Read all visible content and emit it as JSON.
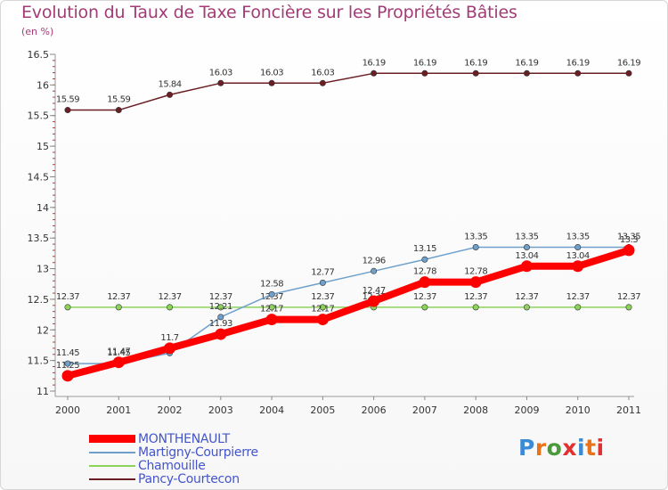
{
  "chart_data": {
    "type": "line",
    "title": "Evolution du Taux de Taxe Foncière sur les Propriétés Bâties",
    "unit_label": "(en %)",
    "x": [
      "2000",
      "2001",
      "2002",
      "2003",
      "2004",
      "2005",
      "2006",
      "2007",
      "2008",
      "2009",
      "2010",
      "2011"
    ],
    "ylim": [
      11,
      16.5
    ],
    "yticks": [
      "11",
      "11.5",
      "12",
      "12.5",
      "13",
      "13.5",
      "14",
      "14.5",
      "15",
      "15.5",
      "16",
      "16.5"
    ],
    "series": [
      {
        "name": "Pancy-Courtecon",
        "color": "#6b1e24",
        "values": [
          15.59,
          15.59,
          15.84,
          16.03,
          16.03,
          16.03,
          16.19,
          16.19,
          16.19,
          16.19,
          16.19,
          16.19
        ],
        "labels": [
          "15.59",
          "15.59",
          "15.84",
          "16.03",
          "16.03",
          "16.03",
          "16.19",
          "16.19",
          "16.19",
          "16.19",
          "16.19",
          "16.19"
        ]
      },
      {
        "name": "Chamouille",
        "color": "#8cd35a",
        "values": [
          12.37,
          12.37,
          12.37,
          12.37,
          12.37,
          12.37,
          12.37,
          12.37,
          12.37,
          12.37,
          12.37,
          12.37
        ],
        "labels": [
          "12.37",
          "12.37",
          "12.37",
          "12.37",
          "12.37",
          "12.37",
          "12.37",
          "12.37",
          "12.37",
          "12.37",
          "12.37",
          "12.37"
        ]
      },
      {
        "name": "Martigny-Courpierre",
        "color": "#6fa0cc",
        "values": [
          11.45,
          11.45,
          11.62,
          12.21,
          12.58,
          12.77,
          12.96,
          13.15,
          13.35,
          13.35,
          13.35,
          13.35
        ],
        "labels": [
          "11.45",
          "11.45",
          "",
          "12.21",
          "12.58",
          "12.77",
          "12.96",
          "13.15",
          "13.35",
          "13.35",
          "13.35",
          "13.35"
        ]
      },
      {
        "name": "MONTHENAULT",
        "color": "#ff0000",
        "values": [
          11.25,
          11.47,
          11.7,
          11.93,
          12.17,
          12.17,
          12.47,
          12.78,
          12.78,
          13.04,
          13.04,
          13.3
        ],
        "labels": [
          "11.25",
          "11.47",
          "11.7",
          "11.93",
          "12.17",
          "12.17",
          "12.47",
          "12.78",
          "12.78",
          "13.04",
          "13.04",
          "13.3"
        ]
      }
    ]
  },
  "legend": {
    "items": [
      {
        "name": "MONTHENAULT",
        "color": "#ff0000"
      },
      {
        "name": "Martigny-Courpierre",
        "color": "#6fa0cc"
      },
      {
        "name": "Chamouille",
        "color": "#8cd35a"
      },
      {
        "name": "Pancy-Courtecon",
        "color": "#6b1e24"
      }
    ]
  },
  "logo": {
    "letters": [
      "P",
      "r",
      "o",
      "x",
      "i",
      "t",
      "i"
    ],
    "colors": [
      "#3a8ad6",
      "#e8731a",
      "#4a9a3a",
      "#e03030",
      "#3a8ad6",
      "#e8731a",
      "#e03030"
    ]
  }
}
